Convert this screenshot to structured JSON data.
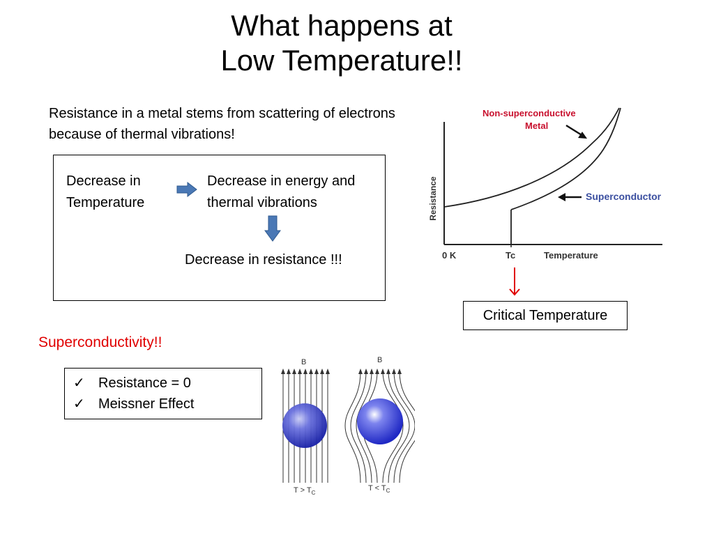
{
  "slide": {
    "title_line1": "What happens at",
    "title_line2": "Low Temperature!!",
    "intro_text": "Resistance in a metal stems from scattering of electrons because of thermal vibrations!"
  },
  "flow": {
    "step1": "Decrease in Temperature",
    "step2": "Decrease in energy and thermal vibrations",
    "step3": "Decrease in resistance !!!"
  },
  "chart": {
    "ylabel": "Resistance",
    "xtick_zero": "0 K",
    "xtick_tc": "Tc",
    "xlabel": "Temperature",
    "label_metal_line1": "Non-superconductive",
    "label_metal_line2": "Metal",
    "label_superconductor": "Superconductor"
  },
  "critical_temperature_label": "Critical Temperature",
  "superconductivity_heading": "Superconductivity!!",
  "properties": [
    {
      "check": "✓",
      "text": "Resistance  =  0"
    },
    {
      "check": "✓",
      "text": "Meissner Effect"
    }
  ],
  "meissner": {
    "field_label_left": "B",
    "field_label_right": "B",
    "cond_left_main": "T > T",
    "cond_left_sub": "C",
    "cond_right_main": "T < T",
    "cond_right_sub": "C"
  },
  "colors": {
    "accent_red": "#e00000",
    "metal_label": "#c8102e",
    "superconductor_label": "#3b4fa0",
    "arrow_blue": "#4a78b5",
    "sphere_blue": "#2b35c9"
  }
}
